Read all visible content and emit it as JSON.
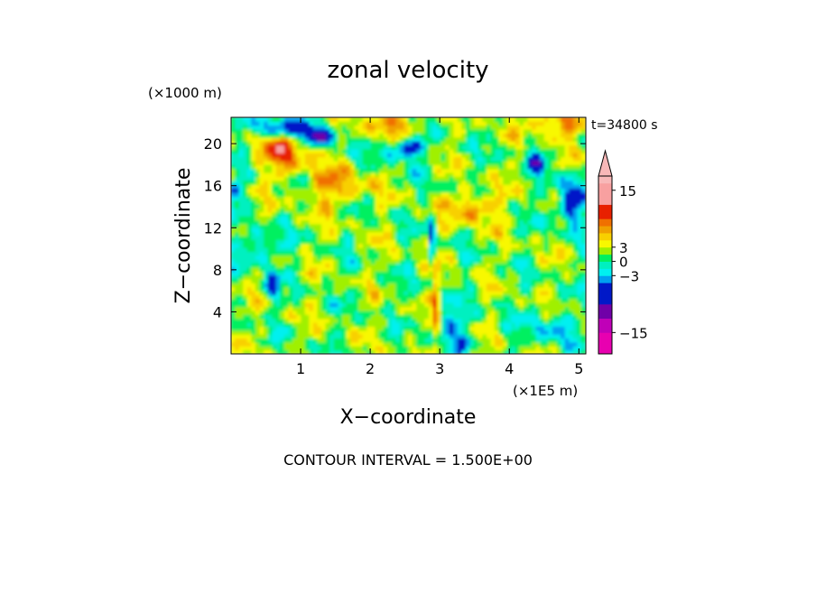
{
  "chart_data": {
    "type": "heatmap",
    "title": "zonal velocity",
    "xlabel": "X−coordinate",
    "ylabel": "Z−coordinate",
    "x_unit": "(×1E5 m)",
    "y_unit": "(×1000 m)",
    "time_label": "t=34800 s",
    "footer": "CONTOUR INTERVAL = 1.500E+00",
    "xlim": [
      0.0,
      5.1
    ],
    "ylim": [
      0,
      22.5
    ],
    "x_ticks": [
      1,
      2,
      3,
      4,
      5
    ],
    "x_tick_labels": [
      "1",
      "2",
      "3",
      "4",
      "5"
    ],
    "y_ticks": [
      4,
      8,
      12,
      16,
      20
    ],
    "y_tick_labels": [
      "4",
      "8",
      "12",
      "16",
      "20"
    ],
    "grid": false,
    "colorbar": {
      "levels": [
        -19.5,
        -18,
        -16.5,
        -15,
        -13.5,
        -12,
        -10.5,
        -9,
        -7.5,
        -6,
        -4.5,
        -3,
        -1.5,
        0,
        1.5,
        3,
        4.5,
        6,
        7.5,
        9,
        10.5,
        12,
        13.5,
        15,
        16.5,
        18,
        19.5
      ],
      "tick_values": [
        15,
        3,
        0,
        -3,
        -15
      ],
      "tick_labels": [
        "15",
        "3",
        "0",
        "−3",
        "−15"
      ],
      "colors": {
        "strong_negative": "#e800b0",
        "negative_purple": "#7000a8",
        "negative_blue": "#0018c8",
        "weak_negative": "#00f0f0",
        "near_zero_green": "#00f060",
        "weak_positive": "#f8f800",
        "positive_orange": "#f0a000",
        "strong_positive": "#e82000",
        "extreme_positive": "#f8a0a0"
      }
    },
    "field_range": [
      -19.5,
      19.5
    ],
    "field_description_values": {
      "background_dominant": [
        -1.5,
        4.5
      ],
      "upper_left_maximum": 10,
      "upper_band_minimum": -9,
      "right_side_minimum": -8,
      "central_plume_x": 2.9
    }
  }
}
